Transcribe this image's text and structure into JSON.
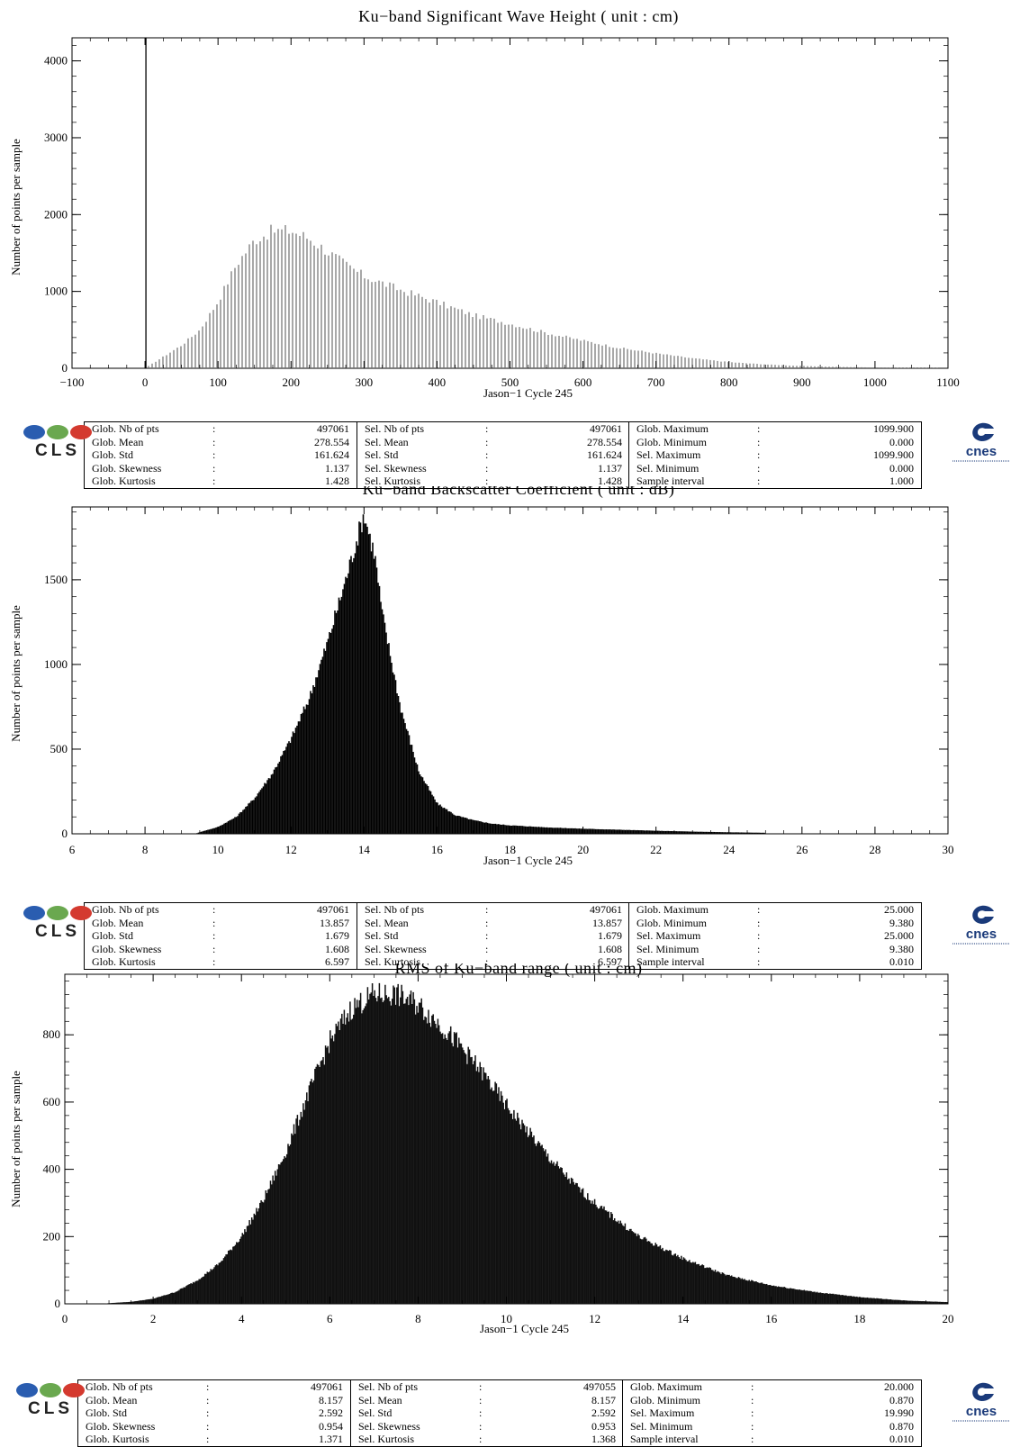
{
  "chart_data": [
    {
      "type": "bar",
      "title": "Ku−band Significant Wave Height  ( unit : cm)",
      "xlabel": "Jason−1 Cycle 245",
      "ylabel": "Number of points per sample",
      "xlim": [
        -100,
        1100
      ],
      "ylim": [
        0,
        4300
      ],
      "xticks": [
        "−100",
        "0",
        "100",
        "200",
        "300",
        "400",
        "500",
        "600",
        "700",
        "800",
        "900",
        "1000",
        "1100"
      ],
      "yticks": [
        "0",
        "1000",
        "2000",
        "3000",
        "4000"
      ],
      "spike": {
        "x": 0,
        "value": 4300
      },
      "x": [
        0,
        25,
        50,
        75,
        100,
        125,
        150,
        175,
        200,
        225,
        250,
        275,
        300,
        350,
        400,
        450,
        500,
        550,
        600,
        650,
        700,
        750,
        800,
        850,
        900,
        950,
        1000,
        1050,
        1100
      ],
      "values": [
        0,
        150,
        300,
        500,
        870,
        1350,
        1670,
        1790,
        1790,
        1690,
        1520,
        1350,
        1200,
        1020,
        860,
        690,
        580,
        460,
        360,
        265,
        195,
        130,
        80,
        50,
        30,
        18,
        10,
        5,
        3
      ],
      "stats": [
        [
          [
            "Glob. Nb of pts",
            "497061"
          ],
          [
            "Glob. Mean",
            "278.554"
          ],
          [
            "Glob. Std",
            "161.624"
          ],
          [
            "Glob. Skewness",
            "1.137"
          ],
          [
            "Glob. Kurtosis",
            "1.428"
          ]
        ],
        [
          [
            "Sel. Nb of pts",
            "497061"
          ],
          [
            "Sel. Mean",
            "278.554"
          ],
          [
            "Sel. Std",
            "161.624"
          ],
          [
            "Sel. Skewness",
            "1.137"
          ],
          [
            "Sel. Kurtosis",
            "1.428"
          ]
        ],
        [
          [
            "Glob. Maximum",
            "1099.900"
          ],
          [
            "Glob. Minimum",
            "0.000"
          ],
          [
            "Sel. Maximum",
            "1099.900"
          ],
          [
            "Sel. Minimum",
            "0.000"
          ],
          [
            "Sample interval",
            "1.000"
          ]
        ]
      ]
    },
    {
      "type": "bar",
      "title": "Ku−band Backscatter Coefficient  ( unit : dB)",
      "xlabel": "Jason−1 Cycle 245",
      "ylabel": "Number of points per sample",
      "xlim": [
        6,
        30
      ],
      "ylim": [
        0,
        1930
      ],
      "xticks": [
        "6",
        "8",
        "10",
        "12",
        "14",
        "16",
        "18",
        "20",
        "22",
        "24",
        "26",
        "28",
        "30"
      ],
      "yticks": [
        "0",
        "500",
        "1000",
        "1500"
      ],
      "x": [
        9.38,
        9.5,
        10,
        10.5,
        11,
        11.5,
        12,
        12.5,
        13,
        13.5,
        14,
        14.3,
        14.5,
        15,
        15.5,
        16,
        16.5,
        17,
        17.5,
        18,
        19,
        20,
        21,
        22,
        23,
        24,
        25
      ],
      "values": [
        0,
        10,
        40,
        100,
        210,
        360,
        560,
        800,
        1130,
        1500,
        1890,
        1640,
        1300,
        750,
        370,
        180,
        110,
        80,
        60,
        50,
        38,
        30,
        24,
        18,
        13,
        9,
        6
      ],
      "stats": [
        [
          [
            "Glob. Nb of pts",
            "497061"
          ],
          [
            "Glob. Mean",
            "13.857"
          ],
          [
            "Glob. Std",
            "1.679"
          ],
          [
            "Glob. Skewness",
            "1.608"
          ],
          [
            "Glob. Kurtosis",
            "6.597"
          ]
        ],
        [
          [
            "Sel. Nb of pts",
            "497061"
          ],
          [
            "Sel. Mean",
            "13.857"
          ],
          [
            "Sel. Std",
            "1.679"
          ],
          [
            "Sel. Skewness",
            "1.608"
          ],
          [
            "Sel. Kurtosis",
            "6.597"
          ]
        ],
        [
          [
            "Glob. Maximum",
            "25.000"
          ],
          [
            "Glob. Minimum",
            "9.380"
          ],
          [
            "Sel. Maximum",
            "25.000"
          ],
          [
            "Sel. Minimum",
            "9.380"
          ],
          [
            "Sample interval",
            "0.010"
          ]
        ]
      ]
    },
    {
      "type": "bar",
      "title": "RMS of Ku−band range  ( unit : cm)",
      "xlabel": "Jason−1 Cycle 245",
      "ylabel": "Number of points per sample",
      "xlim": [
        0,
        20
      ],
      "ylim": [
        0,
        980
      ],
      "xticks": [
        "0",
        "2",
        "4",
        "6",
        "8",
        "10",
        "12",
        "14",
        "16",
        "18",
        "20"
      ],
      "yticks": [
        "0",
        "200",
        "400",
        "600",
        "800"
      ],
      "x": [
        0.87,
        1,
        1.5,
        2,
        2.5,
        3,
        3.5,
        4,
        4.5,
        5,
        5.5,
        6,
        6.5,
        7,
        7.5,
        8,
        8.5,
        9,
        9.5,
        10,
        10.5,
        11,
        11.5,
        12,
        12.5,
        13,
        14,
        15,
        16,
        17,
        18,
        19,
        20
      ],
      "values": [
        0,
        2,
        6,
        15,
        35,
        70,
        120,
        200,
        310,
        450,
        620,
        780,
        880,
        920,
        920,
        890,
        830,
        760,
        680,
        590,
        510,
        430,
        360,
        300,
        250,
        200,
        135,
        85,
        55,
        35,
        20,
        10,
        5
      ],
      "stats": [
        [
          [
            "Glob. Nb of pts",
            "497061"
          ],
          [
            "Glob. Mean",
            "8.157"
          ],
          [
            "Glob. Std",
            "2.592"
          ],
          [
            "Glob. Skewness",
            "0.954"
          ],
          [
            "Glob. Kurtosis",
            "1.371"
          ]
        ],
        [
          [
            "Sel. Nb of pts",
            "497055"
          ],
          [
            "Sel. Mean",
            "8.157"
          ],
          [
            "Sel. Std",
            "2.592"
          ],
          [
            "Sel. Skewness",
            "0.953"
          ],
          [
            "Sel. Kurtosis",
            "1.368"
          ]
        ],
        [
          [
            "Glob. Maximum",
            "20.000"
          ],
          [
            "Glob. Minimum",
            "0.870"
          ],
          [
            "Sel. Maximum",
            "19.990"
          ],
          [
            "Sel. Minimum",
            "0.870"
          ],
          [
            "Sample interval",
            "0.010"
          ]
        ]
      ]
    }
  ],
  "logos": {
    "cls_text": "CLS",
    "cnes_text": "cnes",
    "colors": {
      "blue": "#2a5db0",
      "green": "#6aa84f",
      "red": "#d43a2f",
      "navy": "#1a3a7a"
    }
  }
}
